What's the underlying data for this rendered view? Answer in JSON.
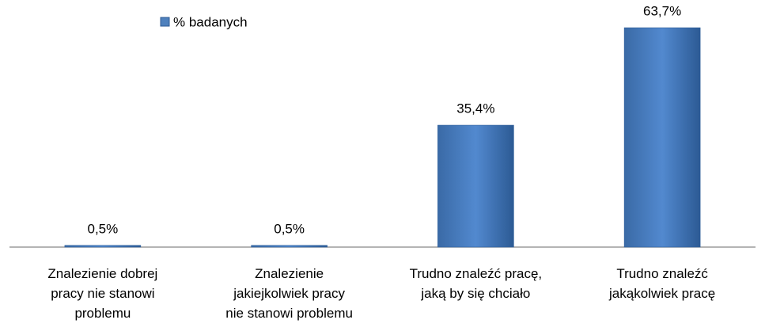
{
  "chart_data": {
    "type": "bar",
    "categories": [
      "Znalezienie dobrej\npracy nie stanowi\nproblemu",
      "Znalezienie\njakiejkolwiek pracy\nnie stanowi problemu",
      "Trudno znaleźć pracę,\njaką by się chciało",
      "Trudno znaleźć\njakąkolwiek pracę"
    ],
    "series": [
      {
        "name": "% badanych",
        "color": "#4f81bd",
        "values": [
          0.5,
          0.5,
          35.4,
          63.7
        ],
        "value_labels": [
          "0,5%",
          "0,5%",
          "35,4%",
          "63,7%"
        ]
      }
    ],
    "legend": "top-left"
  }
}
